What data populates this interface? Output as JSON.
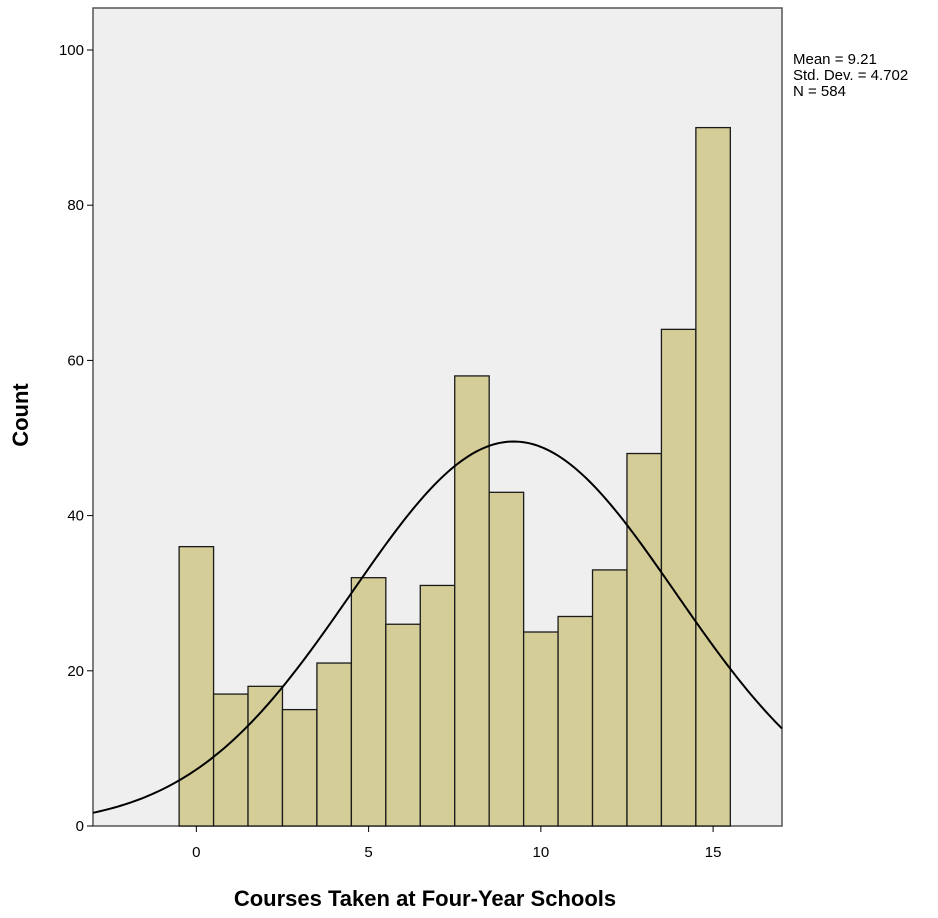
{
  "chart_data": {
    "type": "bar",
    "subtype": "histogram",
    "xlabel": "Courses Taken at  Four-Year Schools",
    "ylabel": "Count",
    "xlim": [
      -3,
      17
    ],
    "ylim": [
      0,
      100
    ],
    "xticks": [
      0,
      5,
      10,
      15
    ],
    "yticks": [
      0,
      20,
      40,
      60,
      80,
      100
    ],
    "bin_width": 1,
    "categories": [
      0,
      1,
      2,
      3,
      4,
      5,
      6,
      7,
      8,
      9,
      10,
      11,
      12,
      13,
      14,
      15
    ],
    "values": [
      36,
      17,
      18,
      15,
      21,
      32,
      26,
      31,
      58,
      43,
      25,
      27,
      33,
      48,
      64,
      90
    ],
    "normal_curve": {
      "mean": 9.21,
      "std_dev": 4.702,
      "n": 584
    },
    "colors": {
      "bar_fill": "#d4cd98",
      "bar_stroke": "#1a1a1a",
      "plot_bg": "#efefef",
      "curve": "#000000"
    },
    "grid": false
  },
  "stats": {
    "mean": "Mean = 9.21",
    "std_dev": "Std. Dev. = 4.702",
    "n": "N = 584"
  }
}
